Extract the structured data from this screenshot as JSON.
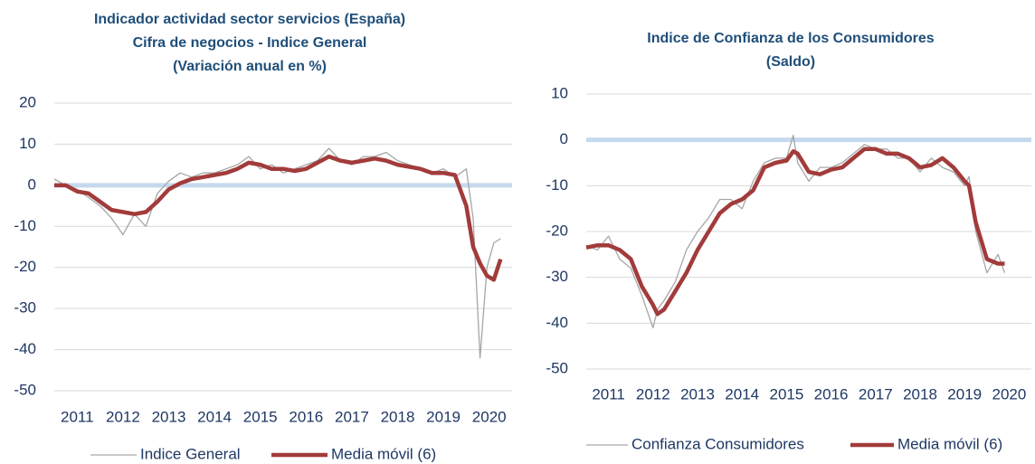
{
  "chart_data": [
    {
      "type": "line",
      "title": [
        "Indicador  actividad sector servicios (España)",
        "Cifra de negocios - Indice General",
        "(Variación anual en %)"
      ],
      "x": [
        2011.0,
        2011.25,
        2011.5,
        2011.75,
        2012.0,
        2012.25,
        2012.5,
        2012.75,
        2013.0,
        2013.25,
        2013.5,
        2013.75,
        2014.0,
        2014.25,
        2014.5,
        2014.75,
        2015.0,
        2015.25,
        2015.5,
        2015.75,
        2016.0,
        2016.25,
        2016.5,
        2016.75,
        2017.0,
        2017.25,
        2017.5,
        2017.75,
        2018.0,
        2018.25,
        2018.5,
        2018.75,
        2019.0,
        2019.25,
        2019.5,
        2019.75,
        2020.0,
        2020.15,
        2020.3,
        2020.45,
        2020.6,
        2020.75
      ],
      "series": [
        {
          "name": "Indice General",
          "color": "#a6a6a6",
          "values": [
            1.5,
            0,
            -1,
            -3,
            -5,
            -8,
            -12,
            -7,
            -10,
            -2,
            1,
            3,
            2,
            3,
            3,
            4,
            5,
            7,
            4,
            5,
            3,
            4,
            5,
            6,
            9,
            6,
            5,
            7,
            7,
            8,
            6,
            5,
            4,
            3,
            4,
            2,
            4,
            -8,
            -42,
            -20,
            -14,
            -13
          ]
        },
        {
          "name": "Media móvil (6)",
          "color": "#a23b3b",
          "values": [
            0,
            0,
            -1.5,
            -2,
            -4,
            -6,
            -6.5,
            -7,
            -6.5,
            -4,
            -1,
            0.5,
            1.5,
            2,
            2.5,
            3,
            4,
            5.5,
            5,
            4,
            4,
            3.5,
            4,
            5.5,
            7,
            6,
            5.5,
            6,
            6.5,
            6,
            5,
            4.5,
            4,
            3,
            3,
            2.5,
            -5,
            -15,
            -19,
            -22,
            -23,
            -18
          ]
        }
      ],
      "xlim": [
        2011,
        2021
      ],
      "ylim": [
        -50,
        20
      ],
      "xticks": [
        {
          "value": 2011.5,
          "label": "2011"
        },
        {
          "value": 2012.5,
          "label": "2012"
        },
        {
          "value": 2013.5,
          "label": "2013"
        },
        {
          "value": 2014.5,
          "label": "2014"
        },
        {
          "value": 2015.5,
          "label": "2015"
        },
        {
          "value": 2016.5,
          "label": "2016"
        },
        {
          "value": 2017.5,
          "label": "2017"
        },
        {
          "value": 2018.5,
          "label": "2018"
        },
        {
          "value": 2019.5,
          "label": "2019"
        },
        {
          "value": 2020.5,
          "label": "2020"
        }
      ],
      "yticks": [
        -50,
        -40,
        -30,
        -20,
        -10,
        0,
        10,
        20
      ],
      "grid": true
    },
    {
      "type": "line",
      "title": [
        "Indice de Confianza de los Consumidores",
        "(Saldo)"
      ],
      "x": [
        2011.0,
        2011.25,
        2011.5,
        2011.75,
        2012.0,
        2012.25,
        2012.5,
        2012.6,
        2012.75,
        2013.0,
        2013.25,
        2013.5,
        2013.75,
        2014.0,
        2014.25,
        2014.5,
        2014.75,
        2015.0,
        2015.25,
        2015.5,
        2015.65,
        2015.75,
        2016.0,
        2016.25,
        2016.5,
        2016.75,
        2017.0,
        2017.25,
        2017.5,
        2017.75,
        2018.0,
        2018.25,
        2018.5,
        2018.75,
        2019.0,
        2019.25,
        2019.5,
        2019.6,
        2019.75,
        2020.0,
        2020.25,
        2020.4
      ],
      "series": [
        {
          "name": "Confianza Consumidores",
          "color": "#a6a6a6",
          "values": [
            -23,
            -24,
            -21,
            -26,
            -28,
            -34,
            -41,
            -37,
            -35,
            -31,
            -24,
            -20,
            -17,
            -13,
            -13,
            -15,
            -9,
            -5,
            -4,
            -4,
            1,
            -5,
            -9,
            -6,
            -6,
            -5,
            -3,
            -1,
            -2,
            -2,
            -4,
            -4,
            -7,
            -4,
            -6,
            -7,
            -10,
            -8,
            -20,
            -29,
            -25,
            -29
          ]
        },
        {
          "name": "Media móvil (6)",
          "color": "#a23b3b",
          "values": [
            -23.5,
            -23,
            -23,
            -24,
            -26,
            -32,
            -36,
            -38,
            -37,
            -33,
            -29,
            -24,
            -20,
            -16,
            -14,
            -13,
            -11,
            -6,
            -5,
            -4.5,
            -2.5,
            -3,
            -7,
            -7.5,
            -6.5,
            -6,
            -4,
            -2,
            -2,
            -3,
            -3,
            -4,
            -6,
            -5.5,
            -4,
            -6,
            -9,
            -10,
            -18,
            -26,
            -27,
            -27
          ]
        }
      ],
      "xlim": [
        2011,
        2021
      ],
      "ylim": [
        -50,
        10
      ],
      "xticks": [
        {
          "value": 2011.5,
          "label": "2011"
        },
        {
          "value": 2012.5,
          "label": "2012"
        },
        {
          "value": 2013.5,
          "label": "2013"
        },
        {
          "value": 2014.5,
          "label": "2014"
        },
        {
          "value": 2015.5,
          "label": "2015"
        },
        {
          "value": 2016.5,
          "label": "2016"
        },
        {
          "value": 2017.5,
          "label": "2017"
        },
        {
          "value": 2018.5,
          "label": "2018"
        },
        {
          "value": 2019.5,
          "label": "2019"
        },
        {
          "value": 2020.5,
          "label": "2020"
        }
      ],
      "yticks": [
        -50,
        -40,
        -30,
        -20,
        -10,
        0,
        10
      ],
      "grid": true
    }
  ]
}
